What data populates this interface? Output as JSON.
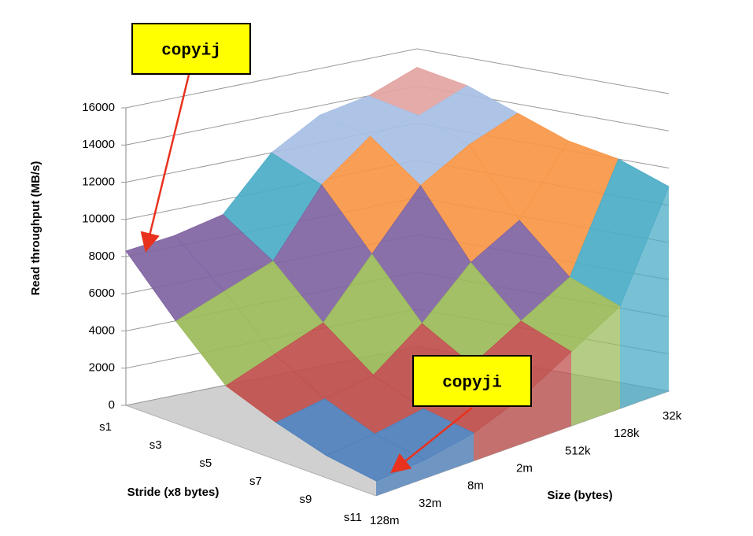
{
  "chart_data": {
    "type": "surface",
    "x_label": "Stride (x8 bytes)",
    "y_label": "Size (bytes)",
    "z_label": "Read throughput (MB/s)",
    "x": [
      "s1",
      "s3",
      "s5",
      "s7",
      "s9",
      "s11"
    ],
    "y": [
      "128m",
      "32m",
      "8m",
      "2m",
      "512k",
      "128k",
      "32k"
    ],
    "values": [
      [
        8300,
        8600,
        9200,
        12000,
        13500,
        14000,
        15000
      ],
      [
        5500,
        6500,
        7500,
        11000,
        13000,
        13500,
        14500
      ],
      [
        3000,
        4000,
        5000,
        8000,
        11000,
        12500,
        13500
      ],
      [
        2000,
        2500,
        3000,
        5000,
        7500,
        9000,
        12500
      ],
      [
        1200,
        1500,
        2000,
        3500,
        5000,
        6500,
        12000
      ],
      [
        800,
        1000,
        1500,
        2500,
        4000,
        5500,
        11000
      ]
    ],
    "zlim": [
      0,
      16000
    ],
    "zticks": [
      0,
      2000,
      4000,
      6000,
      8000,
      10000,
      12000,
      14000,
      16000
    ],
    "band_colors": [
      "#4f81bd",
      "#c0504d",
      "#9bbb59",
      "#8064a2",
      "#4bacc6",
      "#f79646",
      "#a7bfe4",
      "#e2a4a2"
    ],
    "grid": true,
    "annotations": [
      {
        "text": "copyij"
      },
      {
        "text": "copyji"
      }
    ]
  }
}
